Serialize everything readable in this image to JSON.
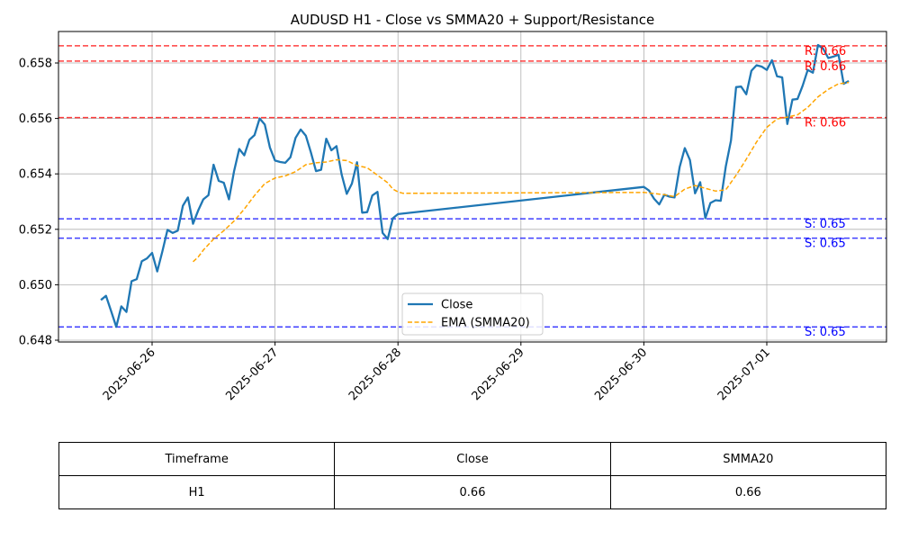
{
  "chart_data": {
    "type": "line",
    "title": "AUDUSD H1 - Close vs SMMA20 + Support/Resistance",
    "xlabel": "",
    "ylabel": "",
    "x_ticks": [
      "2025-06-26",
      "2025-06-27",
      "2025-06-28",
      "2025-06-29",
      "2025-06-30",
      "2025-07-01"
    ],
    "y_ticks": [
      "0.648",
      "0.650",
      "0.652",
      "0.654",
      "0.656",
      "0.658"
    ],
    "ylim": [
      0.6479,
      0.6591
    ],
    "grid": true,
    "legend_position": "lower-center",
    "series": [
      {
        "name": "Close",
        "color": "#1f77b4",
        "style": "solid",
        "points": [
          [
            "2025-06-25T14:00",
            0.64945
          ],
          [
            "2025-06-25T15:00",
            0.6496
          ],
          [
            "2025-06-25T16:00",
            0.64905
          ],
          [
            "2025-06-25T17:00",
            0.64848
          ],
          [
            "2025-06-25T18:00",
            0.64922
          ],
          [
            "2025-06-25T19:00",
            0.64902
          ],
          [
            "2025-06-25T20:00",
            0.65013
          ],
          [
            "2025-06-25T21:00",
            0.6502
          ],
          [
            "2025-06-25T22:00",
            0.65085
          ],
          [
            "2025-06-25T23:00",
            0.65095
          ],
          [
            "2025-06-26T00:00",
            0.65115
          ],
          [
            "2025-06-26T01:00",
            0.65048
          ],
          [
            "2025-06-26T02:00",
            0.6512
          ],
          [
            "2025-06-26T03:00",
            0.65198
          ],
          [
            "2025-06-26T04:00",
            0.65187
          ],
          [
            "2025-06-26T05:00",
            0.65195
          ],
          [
            "2025-06-26T06:00",
            0.65285
          ],
          [
            "2025-06-26T07:00",
            0.65315
          ],
          [
            "2025-06-26T08:00",
            0.6522
          ],
          [
            "2025-06-26T09:00",
            0.65268
          ],
          [
            "2025-06-26T10:00",
            0.65308
          ],
          [
            "2025-06-26T11:00",
            0.65323
          ],
          [
            "2025-06-26T12:00",
            0.65433
          ],
          [
            "2025-06-26T13:00",
            0.65375
          ],
          [
            "2025-06-26T14:00",
            0.65368
          ],
          [
            "2025-06-26T15:00",
            0.65308
          ],
          [
            "2025-06-26T16:00",
            0.6541
          ],
          [
            "2025-06-26T17:00",
            0.6549
          ],
          [
            "2025-06-26T18:00",
            0.65467
          ],
          [
            "2025-06-26T19:00",
            0.65523
          ],
          [
            "2025-06-26T20:00",
            0.6554
          ],
          [
            "2025-06-26T21:00",
            0.656
          ],
          [
            "2025-06-26T22:00",
            0.65578
          ],
          [
            "2025-06-26T23:00",
            0.65495
          ],
          [
            "2025-06-27T00:00",
            0.65448
          ],
          [
            "2025-06-27T01:00",
            0.65443
          ],
          [
            "2025-06-27T02:00",
            0.6544
          ],
          [
            "2025-06-27T03:00",
            0.6546
          ],
          [
            "2025-06-27T04:00",
            0.6553
          ],
          [
            "2025-06-27T05:00",
            0.6556
          ],
          [
            "2025-06-27T06:00",
            0.65538
          ],
          [
            "2025-06-27T07:00",
            0.65478
          ],
          [
            "2025-06-27T08:00",
            0.6541
          ],
          [
            "2025-06-27T09:00",
            0.65415
          ],
          [
            "2025-06-27T10:00",
            0.65527
          ],
          [
            "2025-06-27T11:00",
            0.65485
          ],
          [
            "2025-06-27T12:00",
            0.655
          ],
          [
            "2025-06-27T13:00",
            0.65398
          ],
          [
            "2025-06-27T14:00",
            0.65328
          ],
          [
            "2025-06-27T15:00",
            0.65365
          ],
          [
            "2025-06-27T16:00",
            0.65442
          ],
          [
            "2025-06-27T17:00",
            0.6526
          ],
          [
            "2025-06-27T18:00",
            0.65262
          ],
          [
            "2025-06-27T19:00",
            0.65322
          ],
          [
            "2025-06-27T20:00",
            0.65335
          ],
          [
            "2025-06-27T21:00",
            0.65187
          ],
          [
            "2025-06-27T22:00",
            0.65165
          ],
          [
            "2025-06-27T23:00",
            0.6524
          ],
          [
            "2025-06-28T00:00",
            0.65255
          ],
          [
            "2025-06-30T00:00",
            0.65353
          ],
          [
            "2025-06-30T01:00",
            0.6534
          ],
          [
            "2025-06-30T02:00",
            0.6531
          ],
          [
            "2025-06-30T03:00",
            0.6529
          ],
          [
            "2025-06-30T04:00",
            0.65325
          ],
          [
            "2025-06-30T05:00",
            0.65318
          ],
          [
            "2025-06-30T06:00",
            0.65315
          ],
          [
            "2025-06-30T07:00",
            0.65425
          ],
          [
            "2025-06-30T08:00",
            0.65493
          ],
          [
            "2025-06-30T09:00",
            0.6545
          ],
          [
            "2025-06-30T10:00",
            0.6533
          ],
          [
            "2025-06-30T11:00",
            0.6537
          ],
          [
            "2025-06-30T12:00",
            0.6524
          ],
          [
            "2025-06-30T13:00",
            0.65295
          ],
          [
            "2025-06-30T14:00",
            0.65305
          ],
          [
            "2025-06-30T15:00",
            0.65303
          ],
          [
            "2025-06-30T16:00",
            0.65428
          ],
          [
            "2025-06-30T17:00",
            0.6552
          ],
          [
            "2025-06-30T18:00",
            0.65713
          ],
          [
            "2025-06-30T19:00",
            0.65715
          ],
          [
            "2025-06-30T20:00",
            0.65687
          ],
          [
            "2025-06-30T21:00",
            0.65772
          ],
          [
            "2025-06-30T22:00",
            0.65792
          ],
          [
            "2025-06-30T23:00",
            0.65787
          ],
          [
            "2025-07-01T00:00",
            0.65775
          ],
          [
            "2025-07-01T01:00",
            0.6581
          ],
          [
            "2025-07-01T02:00",
            0.65752
          ],
          [
            "2025-07-01T03:00",
            0.65748
          ],
          [
            "2025-07-01T04:00",
            0.6558
          ],
          [
            "2025-07-01T05:00",
            0.65668
          ],
          [
            "2025-07-01T06:00",
            0.6567
          ],
          [
            "2025-07-01T07:00",
            0.65718
          ],
          [
            "2025-07-01T08:00",
            0.65775
          ],
          [
            "2025-07-01T09:00",
            0.65765
          ],
          [
            "2025-07-01T10:00",
            0.65865
          ],
          [
            "2025-07-01T11:00",
            0.65852
          ],
          [
            "2025-07-01T12:00",
            0.65818
          ],
          [
            "2025-07-01T13:00",
            0.65823
          ],
          [
            "2025-07-01T14:00",
            0.6583
          ],
          [
            "2025-07-01T15:00",
            0.65725
          ],
          [
            "2025-07-01T16:00",
            0.65735
          ]
        ]
      },
      {
        "name": "EMA (SMMA20)",
        "color": "#ffa500",
        "style": "dashed",
        "points": [
          [
            "2025-06-26T08:00",
            0.65083
          ],
          [
            "2025-06-26T09:00",
            0.651
          ],
          [
            "2025-06-26T10:00",
            0.65125
          ],
          [
            "2025-06-26T12:00",
            0.65165
          ],
          [
            "2025-06-26T14:00",
            0.65195
          ],
          [
            "2025-06-26T16:00",
            0.6523
          ],
          [
            "2025-06-26T18:00",
            0.65273
          ],
          [
            "2025-06-26T20:00",
            0.65322
          ],
          [
            "2025-06-26T22:00",
            0.65365
          ],
          [
            "2025-06-27T00:00",
            0.65385
          ],
          [
            "2025-06-27T02:00",
            0.65393
          ],
          [
            "2025-06-27T04:00",
            0.65408
          ],
          [
            "2025-06-27T06:00",
            0.65433
          ],
          [
            "2025-06-27T08:00",
            0.6544
          ],
          [
            "2025-06-27T10:00",
            0.65443
          ],
          [
            "2025-06-27T12:00",
            0.65451
          ],
          [
            "2025-06-27T14:00",
            0.65448
          ],
          [
            "2025-06-27T16:00",
            0.6543
          ],
          [
            "2025-06-27T18:00",
            0.65422
          ],
          [
            "2025-06-27T20:00",
            0.65395
          ],
          [
            "2025-06-27T22:00",
            0.65368
          ],
          [
            "2025-06-27T23:00",
            0.65345
          ],
          [
            "2025-06-28T00:00",
            0.65335
          ],
          [
            "2025-06-28T01:00",
            0.6533
          ],
          [
            "2025-06-30T00:00",
            0.65333
          ],
          [
            "2025-06-30T04:00",
            0.65325
          ],
          [
            "2025-06-30T06:00",
            0.65318
          ],
          [
            "2025-06-30T08:00",
            0.65345
          ],
          [
            "2025-06-30T10:00",
            0.65358
          ],
          [
            "2025-06-30T12:00",
            0.65348
          ],
          [
            "2025-06-30T14:00",
            0.65338
          ],
          [
            "2025-06-30T16:00",
            0.65343
          ],
          [
            "2025-06-30T18:00",
            0.65395
          ],
          [
            "2025-06-30T20:00",
            0.65453
          ],
          [
            "2025-06-30T22:00",
            0.65515
          ],
          [
            "2025-07-01T00:00",
            0.65568
          ],
          [
            "2025-07-01T02:00",
            0.65598
          ],
          [
            "2025-07-01T04:00",
            0.65605
          ],
          [
            "2025-07-01T06:00",
            0.65613
          ],
          [
            "2025-07-01T08:00",
            0.6564
          ],
          [
            "2025-07-01T10:00",
            0.65678
          ],
          [
            "2025-07-01T12:00",
            0.65705
          ],
          [
            "2025-07-01T14:00",
            0.65725
          ],
          [
            "2025-07-01T16:00",
            0.6573
          ]
        ]
      }
    ],
    "levels": [
      {
        "kind": "resistance",
        "value": 0.65862,
        "label": "R: 0.66",
        "color": "#ff0000"
      },
      {
        "kind": "resistance",
        "value": 0.65807,
        "label": "R: 0.66",
        "color": "#ff0000"
      },
      {
        "kind": "resistance",
        "value": 0.65603,
        "label": "R: 0.66",
        "color": "#ff0000"
      },
      {
        "kind": "support",
        "value": 0.65238,
        "label": "S: 0.65",
        "color": "#0000ff"
      },
      {
        "kind": "support",
        "value": 0.65168,
        "label": "S: 0.65",
        "color": "#0000ff"
      },
      {
        "kind": "support",
        "value": 0.64848,
        "label": "S: 0.65",
        "color": "#0000ff"
      }
    ]
  },
  "table": {
    "headers": [
      "Timeframe",
      "Close",
      "SMMA20"
    ],
    "rows": [
      [
        "H1",
        "0.66",
        "0.66"
      ]
    ]
  }
}
